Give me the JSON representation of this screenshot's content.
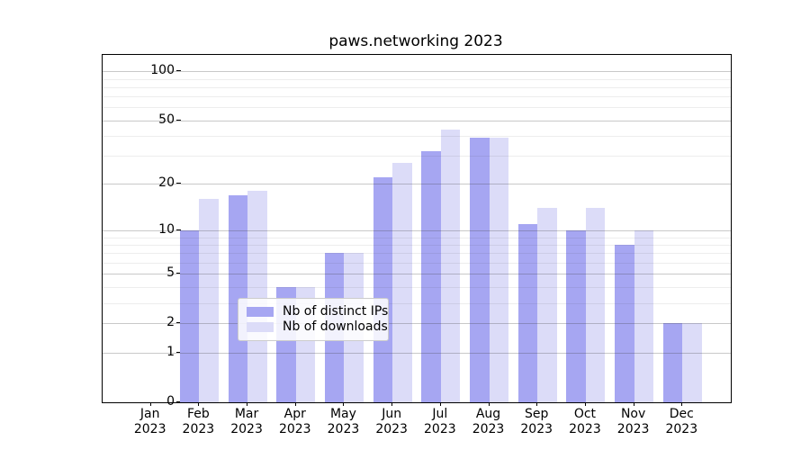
{
  "figure": {
    "title": "paws.networking 2023"
  },
  "chart_data": {
    "type": "bar",
    "title": "paws.networking 2023",
    "categories": [
      "Jan 2023",
      "Feb 2023",
      "Mar 2023",
      "Apr 2023",
      "May 2023",
      "Jun 2023",
      "Jul 2023",
      "Aug 2023",
      "Sep 2023",
      "Oct 2023",
      "Nov 2023",
      "Dec 2023"
    ],
    "month_labels": [
      "Jan",
      "Feb",
      "Mar",
      "Apr",
      "May",
      "Jun",
      "Jul",
      "Aug",
      "Sep",
      "Oct",
      "Nov",
      "Dec"
    ],
    "year_label": "2023",
    "series": [
      {
        "name": "Nb of distinct IPs",
        "color": "#a6a6f2",
        "values": [
          0,
          10,
          17,
          4,
          7,
          22,
          32,
          39,
          11,
          10,
          8,
          2
        ]
      },
      {
        "name": "Nb of downloads",
        "color": "#dcdcf8",
        "values": [
          0,
          16,
          18,
          4,
          7,
          27,
          44,
          39,
          14,
          14,
          10,
          2
        ]
      }
    ],
    "xlabel": "",
    "ylabel": "",
    "y_scale": "log10(value+1)",
    "y_major_ticks": [
      0,
      1,
      2,
      5,
      10,
      20,
      50,
      100
    ],
    "y_minor_gridlines": [
      3,
      4,
      6,
      7,
      8,
      9,
      30,
      40,
      60,
      70,
      80,
      90
    ],
    "ylim": [
      0,
      126
    ],
    "grid": true,
    "legend_position": "lower center",
    "colors": {
      "bar_distinct_ips": "#a6a6f2",
      "bar_downloads": "#dcdcf8",
      "axis": "#000000",
      "grid_major": "#c9c9c9",
      "grid_minor": "#ebebeb",
      "legend_border": "#cccccc"
    }
  }
}
